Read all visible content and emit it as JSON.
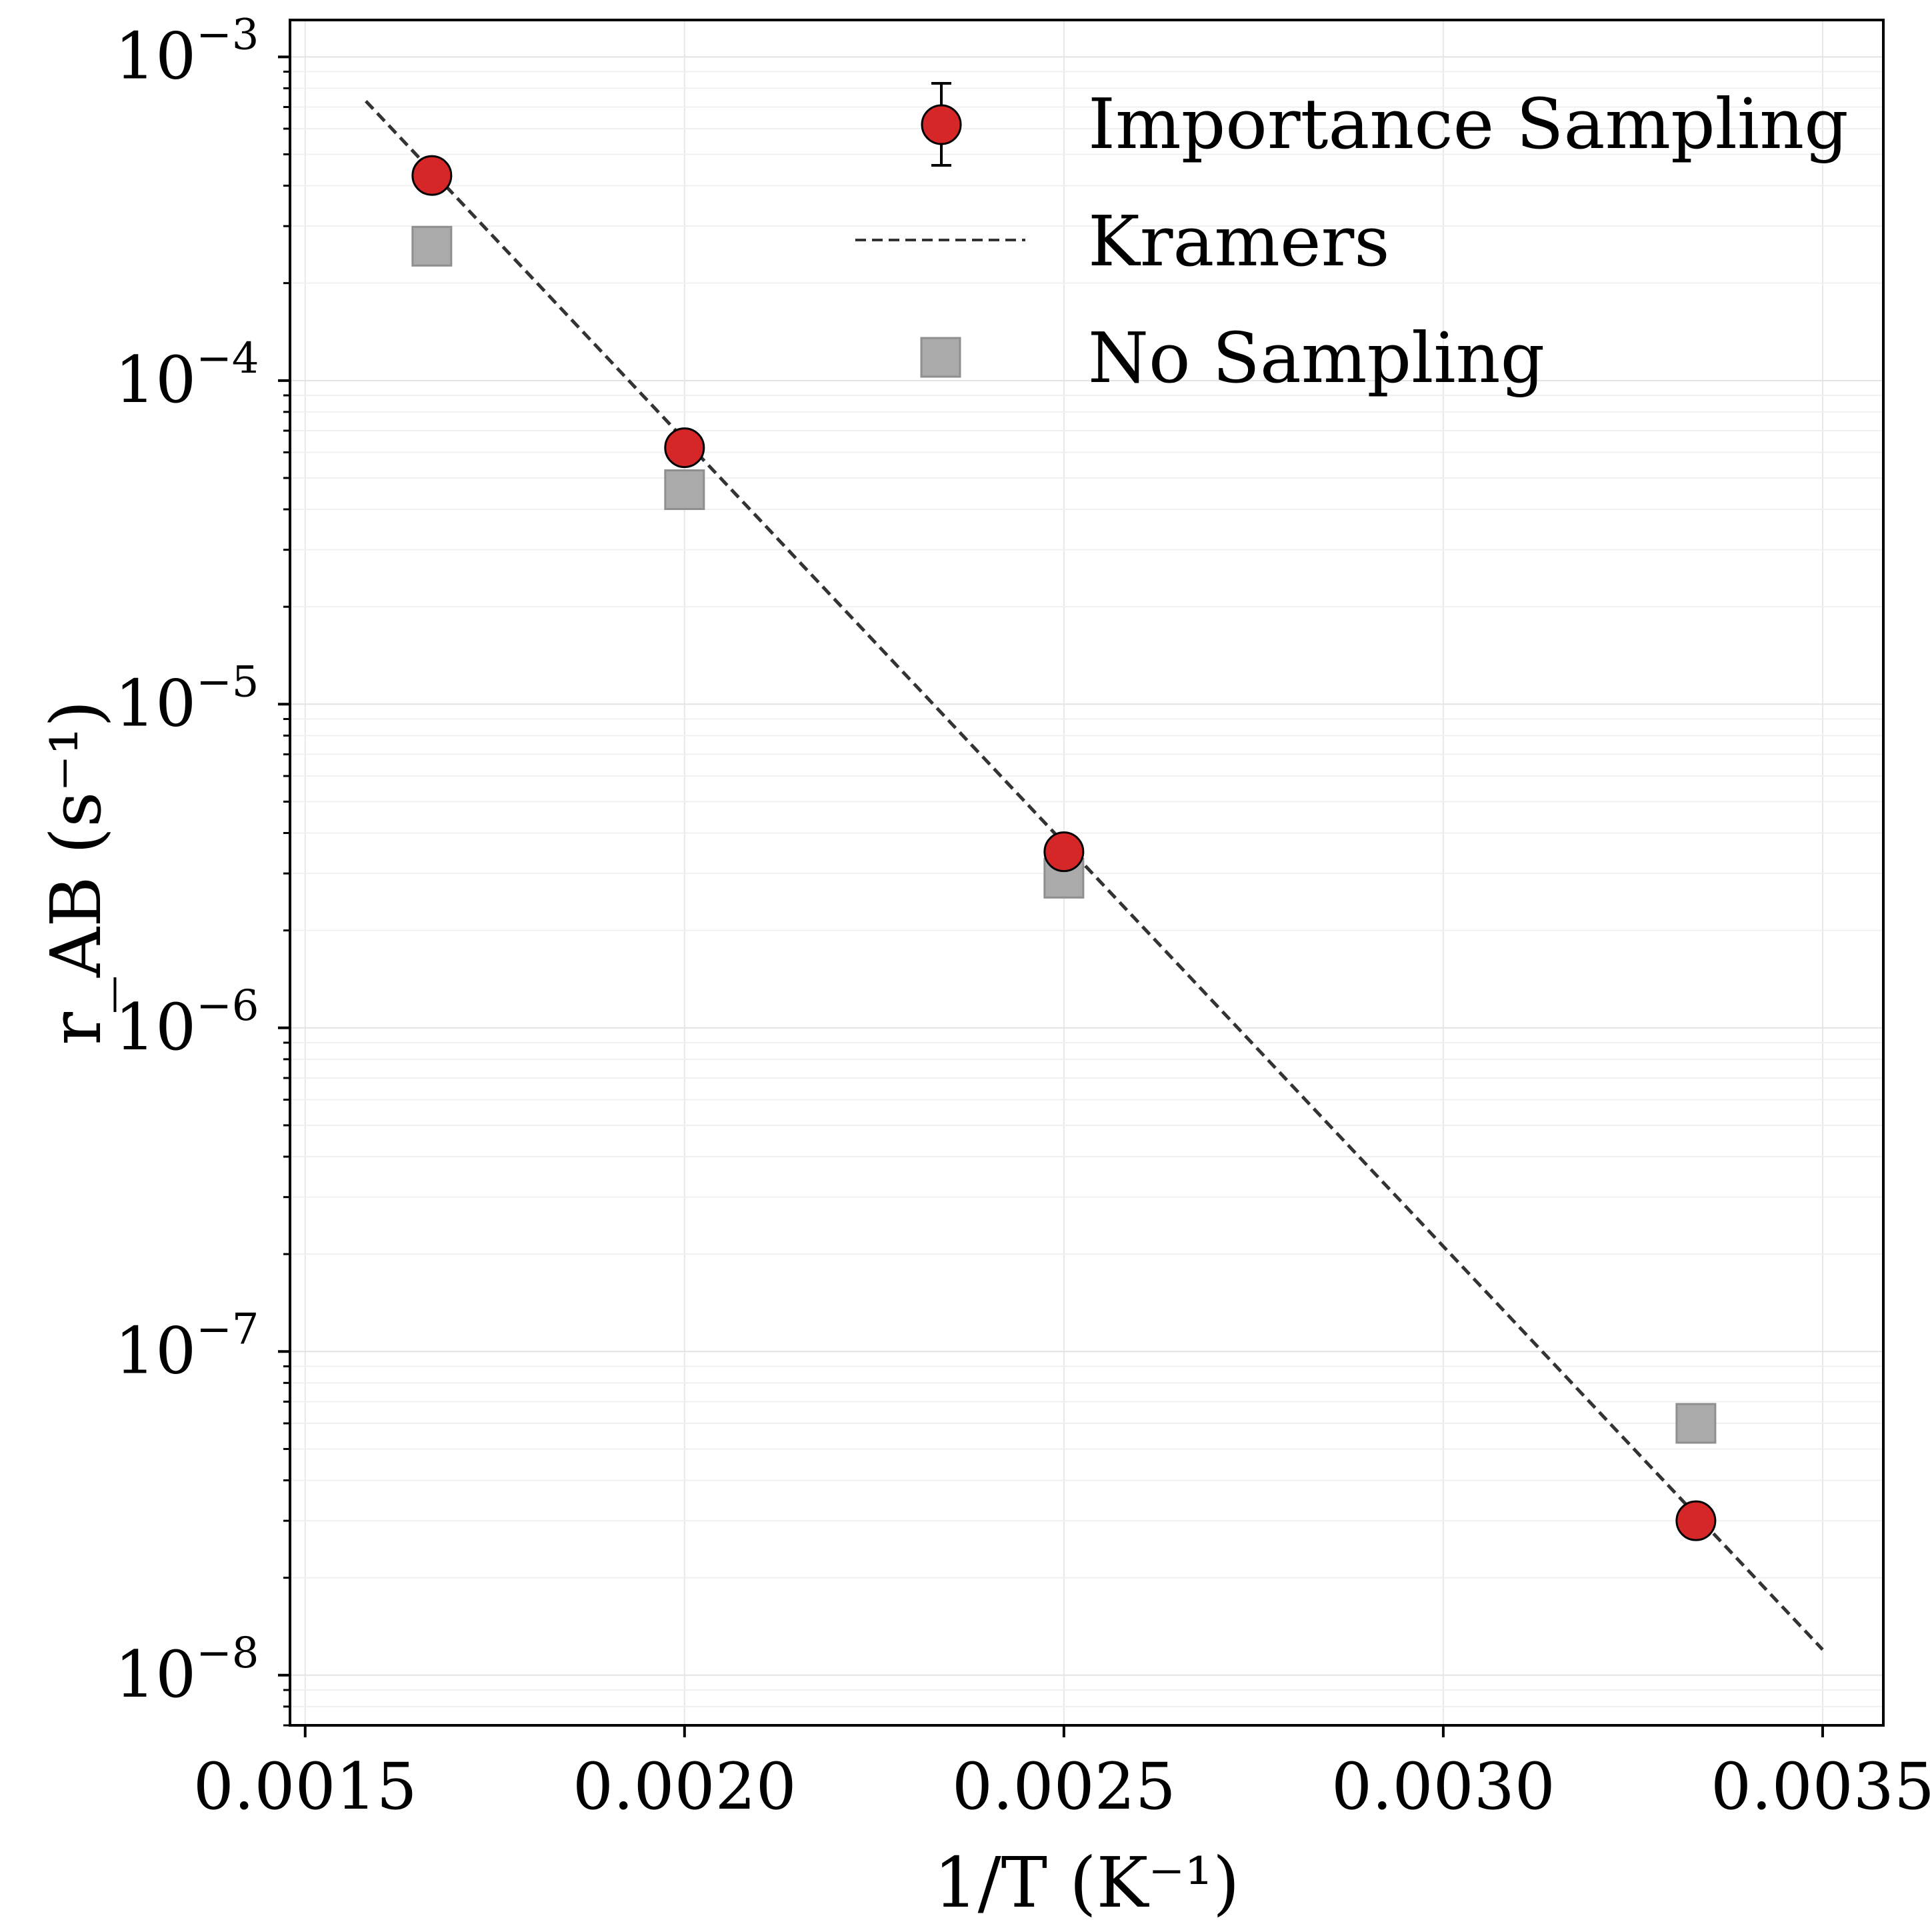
{
  "chart_data": {
    "type": "scatter",
    "xlabel": "1/T (K⁻¹)",
    "ylabel": "r_AB (s⁻¹)",
    "xlim": [
      0.00148,
      0.00358
    ],
    "ylim": [
      7e-09,
      0.0013
    ],
    "yscale": "log",
    "grid": true,
    "legend": "top-right",
    "x_ticks": [
      0.0015,
      0.002,
      0.0025,
      0.003,
      0.0035
    ],
    "x_tick_labels": [
      "0.0015",
      "0.0020",
      "0.0025",
      "0.0030",
      "0.0035"
    ],
    "y_ticks": [
      1e-08,
      1e-07,
      1e-06,
      1e-05,
      0.0001,
      0.001
    ],
    "y_tick_labels": [
      {
        "base": "10",
        "exp": "−8"
      },
      {
        "base": "10",
        "exp": "−7"
      },
      {
        "base": "10",
        "exp": "−6"
      },
      {
        "base": "10",
        "exp": "−5"
      },
      {
        "base": "10",
        "exp": "−4"
      },
      {
        "base": "10",
        "exp": "−3"
      }
    ],
    "series": [
      {
        "name": "Importance Sampling",
        "marker": "circle",
        "color": "#d62728",
        "x": [
          0.001667,
          0.002,
          0.0025,
          0.003333
        ],
        "y": [
          0.00043,
          6.2e-05,
          3.5e-06,
          3e-08
        ]
      },
      {
        "name": "Kramers",
        "marker": "dashed-line",
        "color": "#333333",
        "x": [
          0.00158,
          0.0035
        ],
        "y": [
          0.00073,
          1.2e-08
        ]
      },
      {
        "name": "No Sampling",
        "marker": "square",
        "color": "#aaaaaa",
        "x": [
          0.001667,
          0.002,
          0.0025,
          0.003333
        ],
        "y": [
          0.00026,
          4.6e-05,
          2.9e-06,
          6e-08
        ]
      }
    ]
  }
}
